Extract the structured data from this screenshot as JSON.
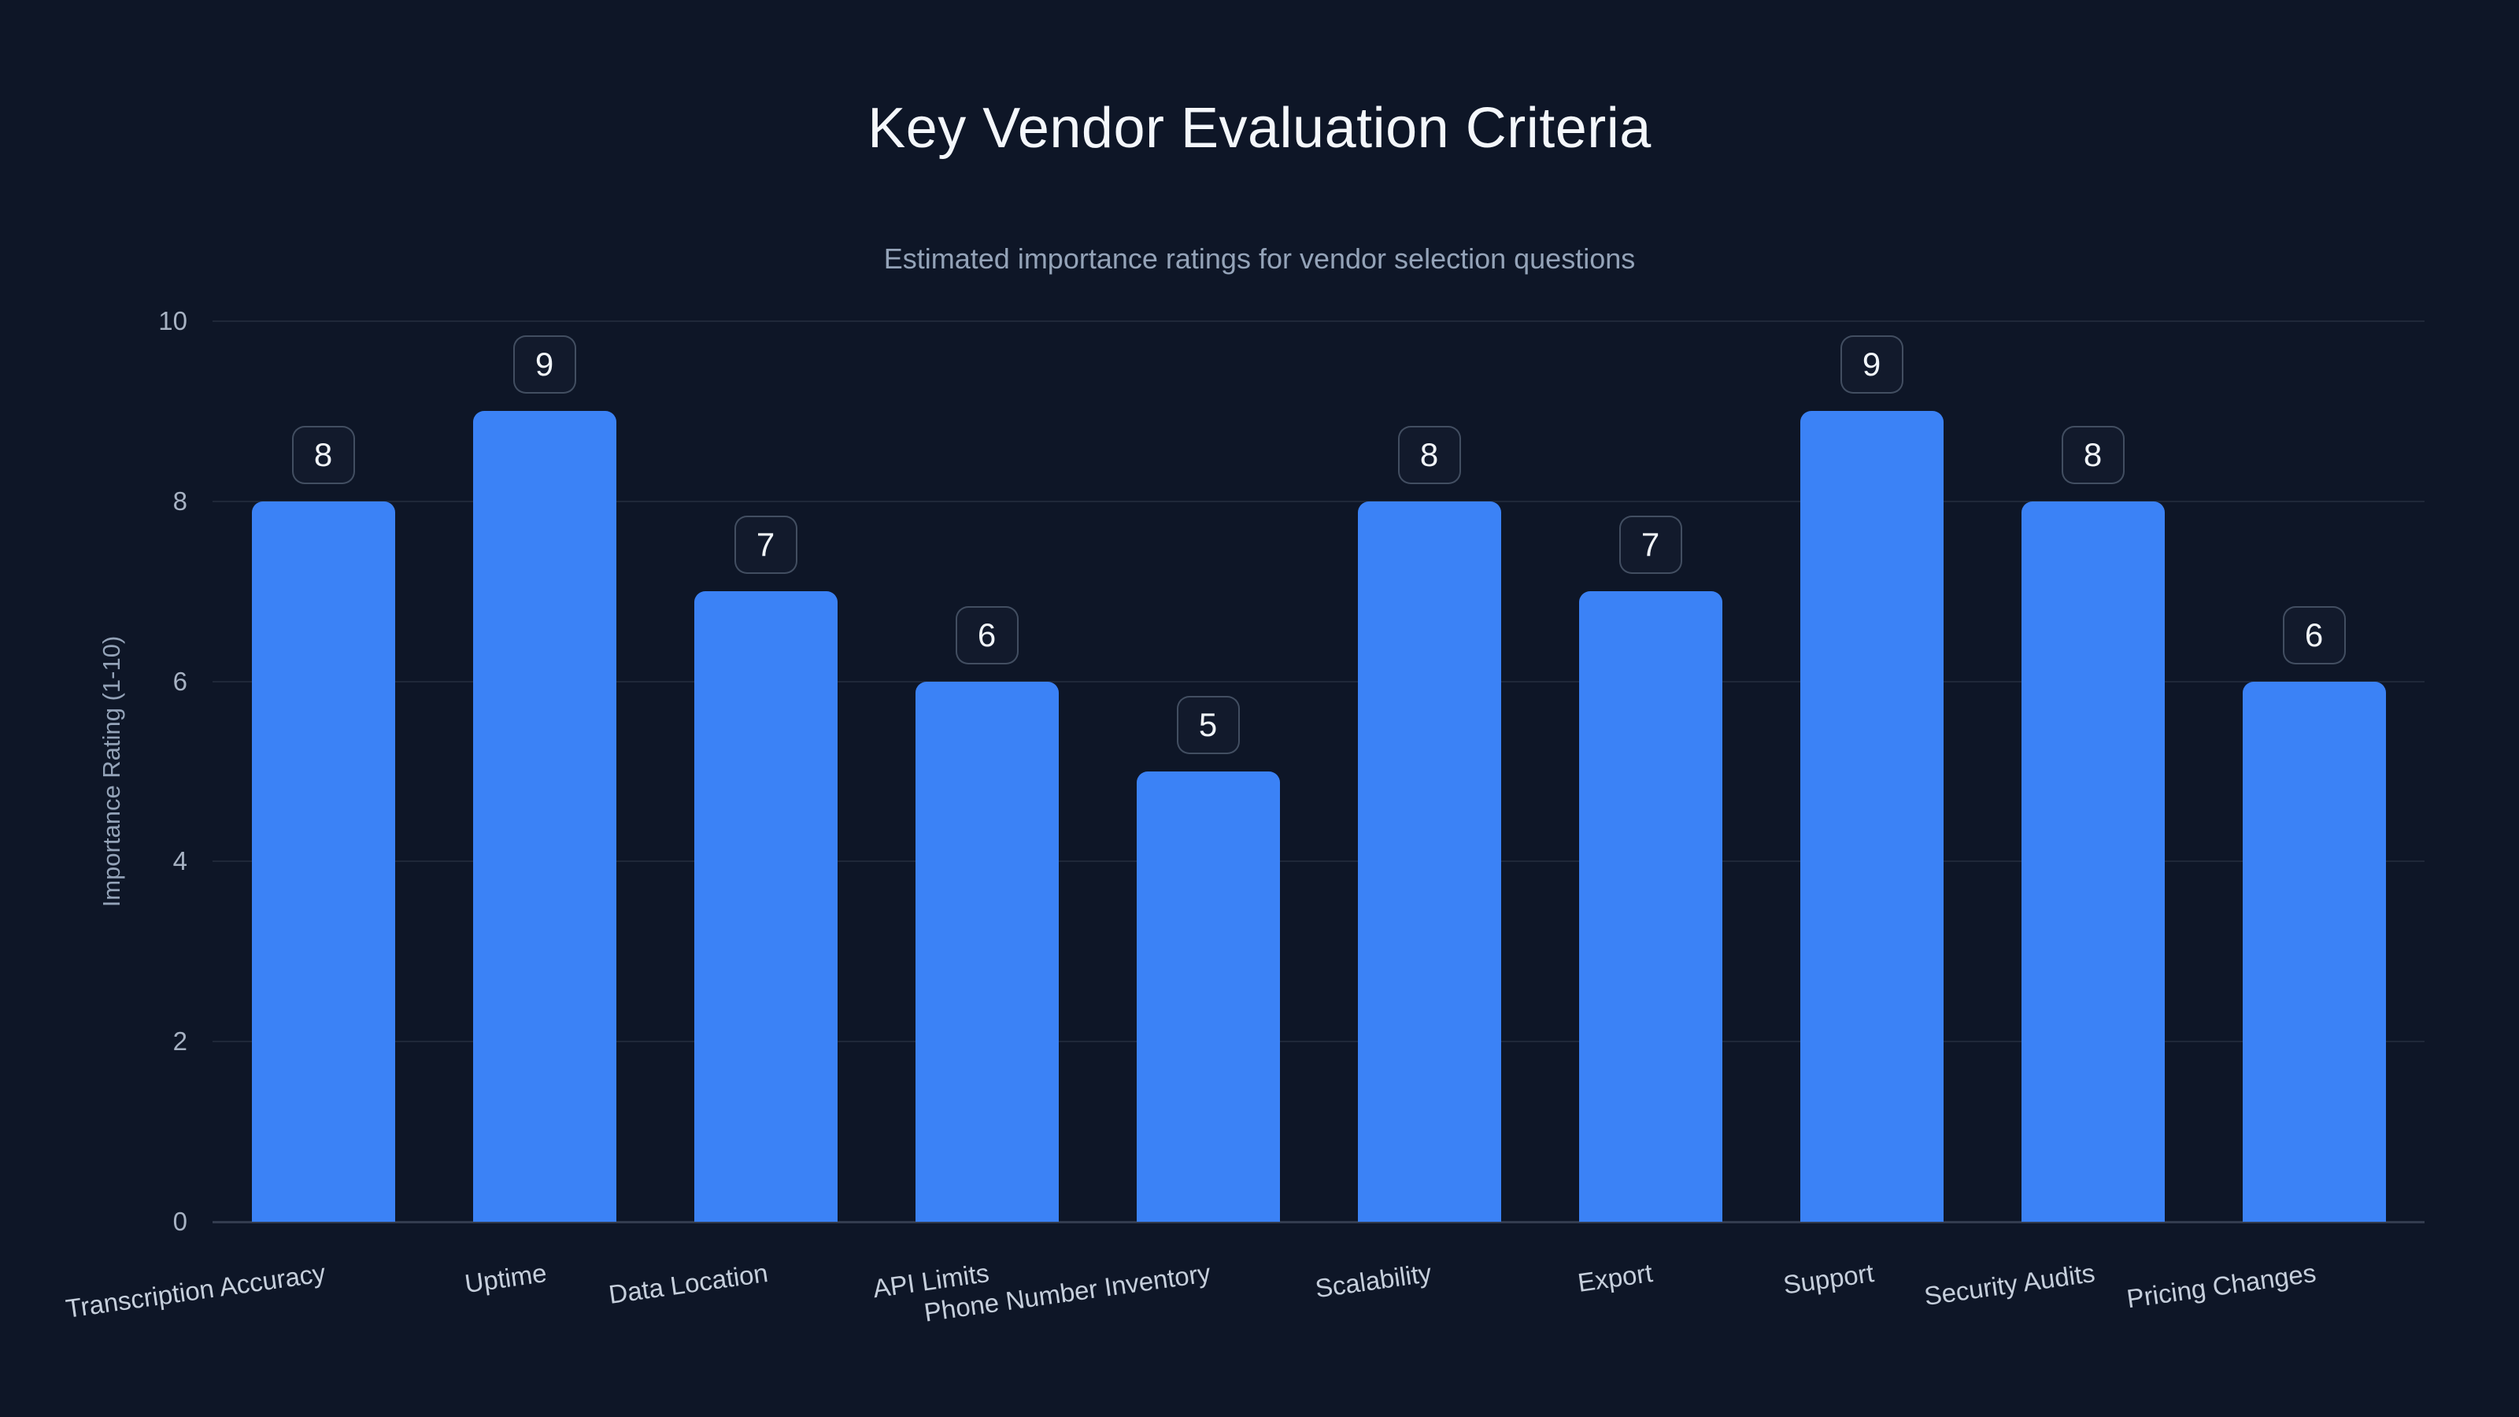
{
  "title": "Key Vendor Evaluation Criteria",
  "subtitle": "Estimated importance ratings for vendor selection questions",
  "chart_data": {
    "type": "bar",
    "title": "Key Vendor Evaluation Criteria",
    "subtitle": "Estimated importance ratings for vendor selection questions",
    "categories": [
      "Transcription Accuracy",
      "Uptime",
      "Data Location",
      "API Limits",
      "Phone Number Inventory",
      "Scalability",
      "Export",
      "Support",
      "Security Audits",
      "Pricing Changes"
    ],
    "values": [
      8,
      9,
      7,
      6,
      5,
      8,
      7,
      9,
      8,
      6
    ],
    "value_labels": [
      "8",
      "9",
      "7",
      "6",
      "5",
      "8",
      "7",
      "9",
      "8",
      "6"
    ],
    "xlabel": "",
    "ylabel": "Importance Rating (1-10)",
    "ylim": [
      0,
      10
    ],
    "yticks": [
      0,
      2,
      4,
      6,
      8,
      10
    ],
    "grid": true,
    "legend": "none",
    "colors": {
      "background": "#0e1627",
      "bar": "#3b82f6",
      "title_text": "#f4f7fb",
      "subtitle_text": "#94a3b8",
      "tick_text": "#a7b2c3",
      "category_text": "#c6cfdc",
      "badge_border": "rgba(148,163,184,0.38)",
      "badge_text": "#f1f5f9",
      "gridline": "rgba(148,163,184,0.13)"
    }
  }
}
